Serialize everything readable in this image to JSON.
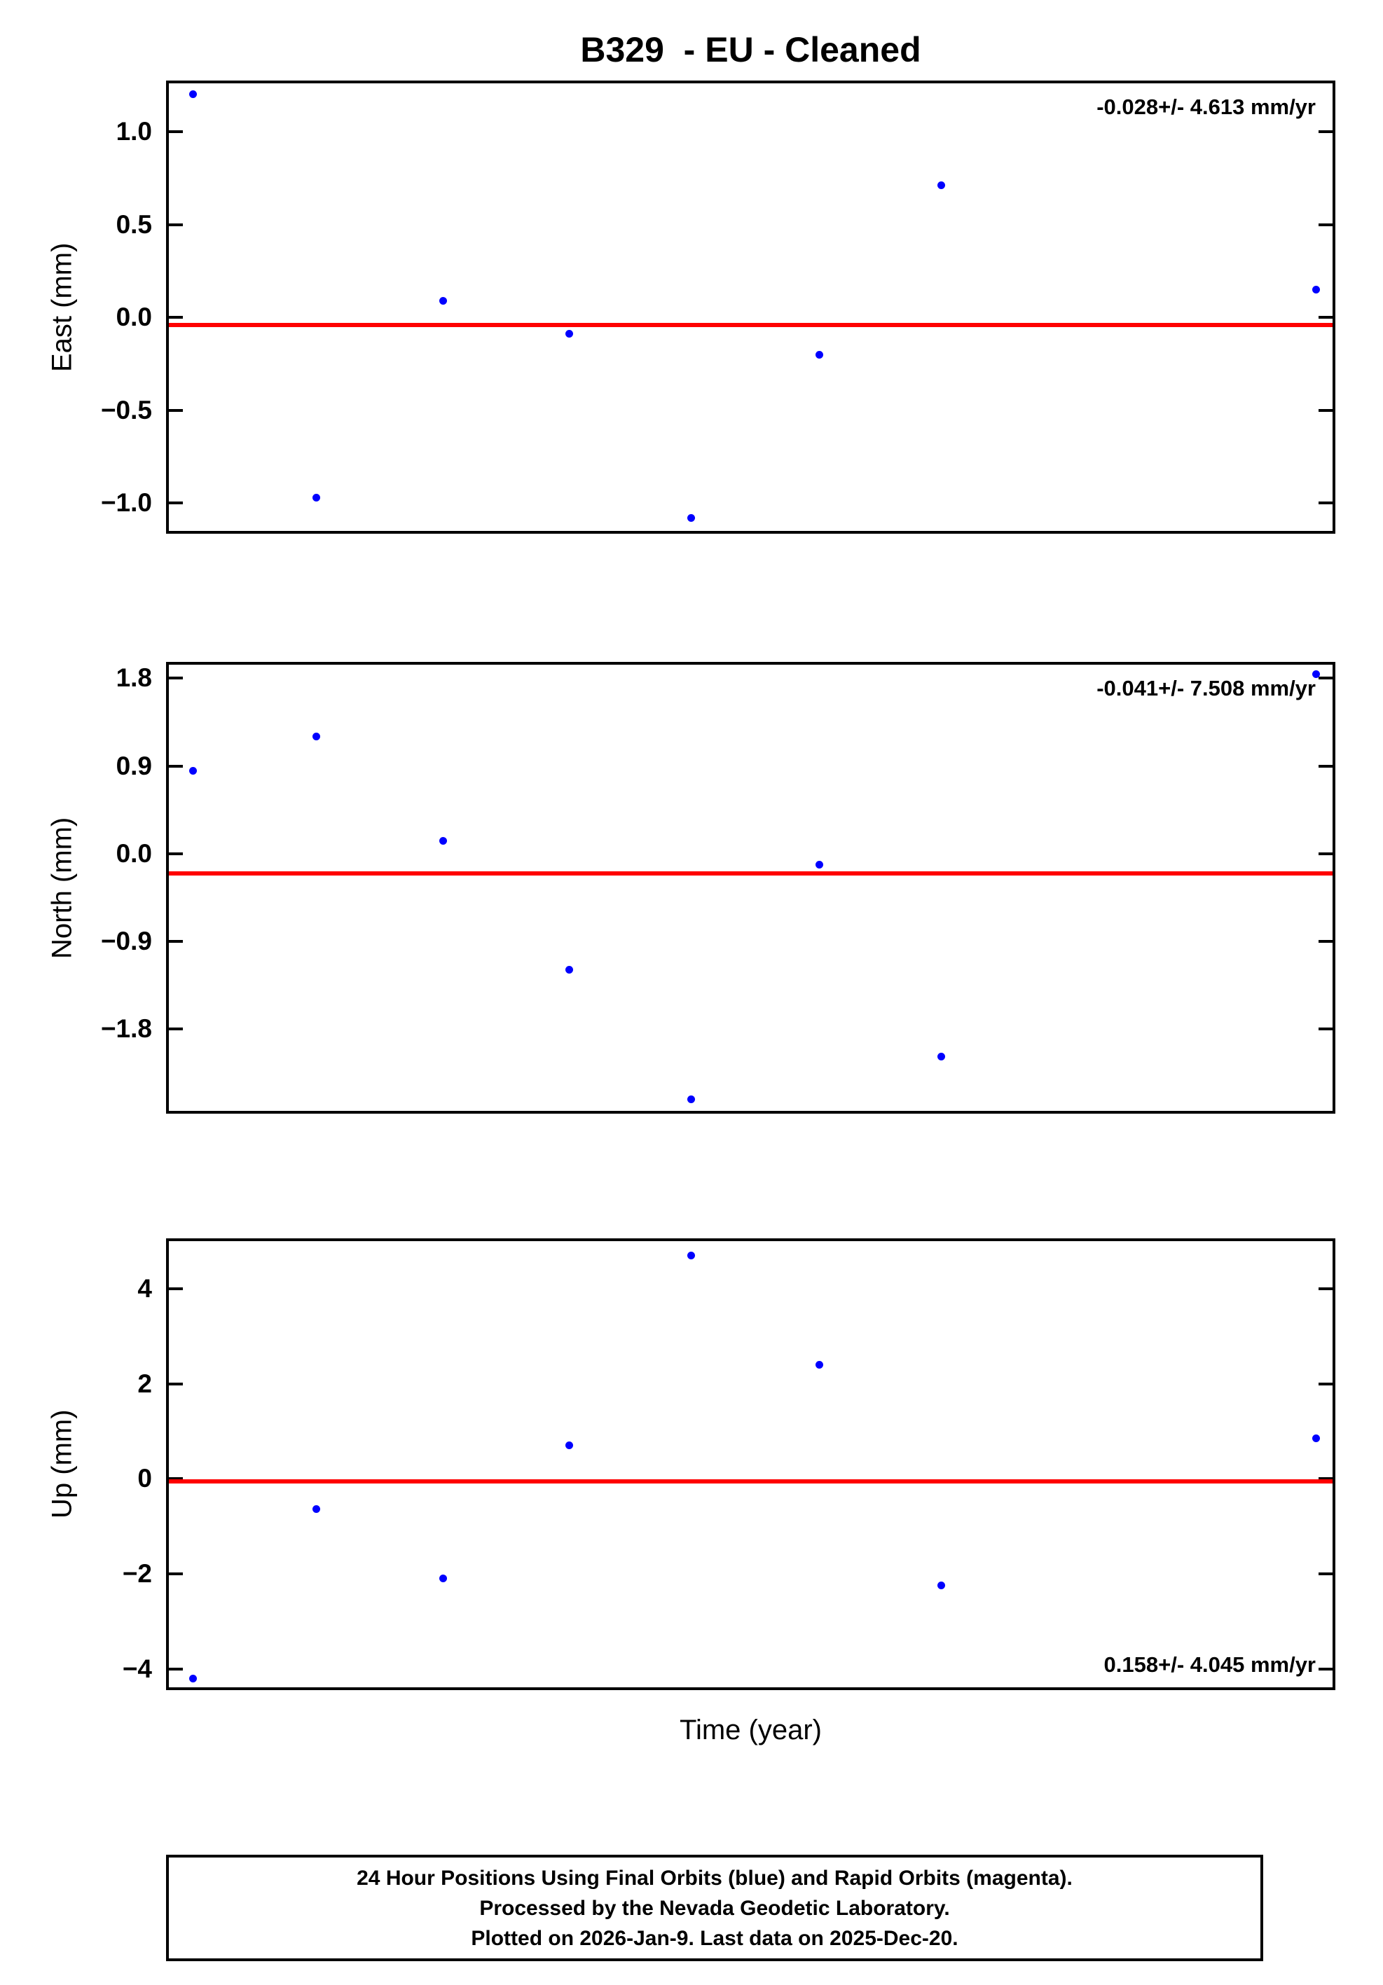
{
  "title": "B329  - EU - Cleaned",
  "xlabel": "Time (year)",
  "colors": {
    "point": "#0000ff",
    "trend": "#ff0000",
    "frame": "#000000"
  },
  "footer": {
    "lines": [
      "24 Hour Positions Using Final Orbits (blue) and Rapid Orbits (magenta).",
      "Processed by the Nevada Geodetic Laboratory.",
      "Plotted on 2026-Jan-9. Last data on 2025-Dec-20."
    ]
  },
  "chart_data": [
    {
      "type": "scatter",
      "ylabel": "East (mm)",
      "rate_label": "-0.028+/- 4.613 mm/yr",
      "rate_label_position": "top-right",
      "ylim": [
        -1.15,
        1.26
      ],
      "yticks": [
        1.0,
        0.5,
        0.0,
        -0.5,
        -1.0
      ],
      "ytick_labels": [
        "1.0",
        "0.5",
        "0.0",
        "−0.5",
        "−1.0"
      ],
      "trend_y": -0.04,
      "points": [
        [
          0.021,
          1.2
        ],
        [
          0.127,
          -0.97
        ],
        [
          0.236,
          0.09
        ],
        [
          0.344,
          -0.09
        ],
        [
          0.449,
          -1.08
        ],
        [
          0.559,
          -0.2
        ],
        [
          0.664,
          0.71
        ],
        [
          0.986,
          0.15
        ]
      ]
    },
    {
      "type": "scatter",
      "ylabel": "North (mm)",
      "rate_label": "-0.041+/- 7.508 mm/yr",
      "rate_label_position": "top-right",
      "ylim": [
        -2.64,
        1.94
      ],
      "yticks": [
        1.8,
        0.9,
        0.0,
        -0.9,
        -1.8
      ],
      "ytick_labels": [
        "1.8",
        "0.9",
        "0.0",
        "−0.9",
        "−1.8"
      ],
      "trend_y": -0.2,
      "points": [
        [
          0.021,
          0.85
        ],
        [
          0.127,
          1.2
        ],
        [
          0.236,
          0.13
        ],
        [
          0.344,
          -1.19
        ],
        [
          0.449,
          -2.52
        ],
        [
          0.559,
          -0.11
        ],
        [
          0.664,
          -2.08
        ],
        [
          0.986,
          1.84
        ]
      ]
    },
    {
      "type": "scatter",
      "ylabel": "Up (mm)",
      "rate_label": "0.158+/- 4.045 mm/yr",
      "rate_label_position": "bottom-right",
      "ylim": [
        -4.39,
        5.0
      ],
      "yticks": [
        4,
        2,
        0,
        -2,
        -4
      ],
      "ytick_labels": [
        "4",
        "2",
        "0",
        "−2",
        "−4"
      ],
      "trend_y": -0.05,
      "points": [
        [
          0.021,
          -4.2
        ],
        [
          0.127,
          -0.64
        ],
        [
          0.236,
          -2.1
        ],
        [
          0.344,
          0.7
        ],
        [
          0.449,
          4.7
        ],
        [
          0.559,
          2.4
        ],
        [
          0.664,
          -2.25
        ],
        [
          0.986,
          0.85
        ]
      ]
    }
  ]
}
